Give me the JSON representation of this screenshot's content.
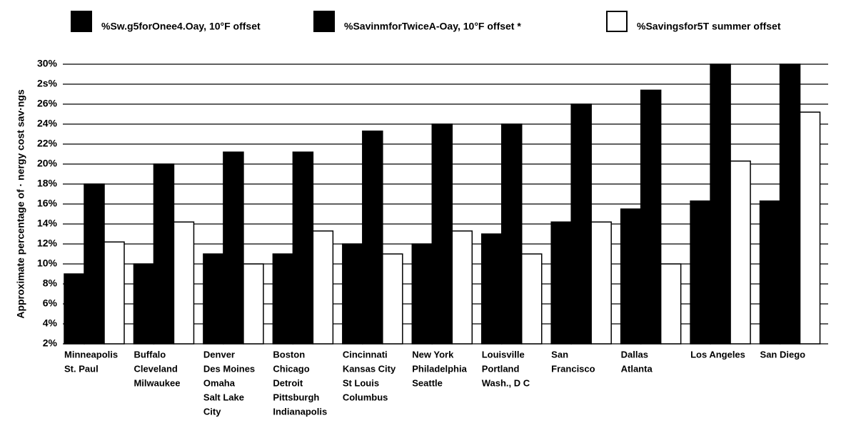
{
  "chart_data": {
    "type": "bar",
    "y_label": "Approximate percentage of · nergy cost sav·ngs",
    "categories": [
      [
        "Minneapolis",
        "St. Paul"
      ],
      [
        "Buffalo",
        "Cleveland",
        "Milwaukee"
      ],
      [
        "Denver",
        "Des Moines",
        "Omaha",
        "Salt Lake",
        "City"
      ],
      [
        "Boston",
        "Chicago",
        "Detroit",
        "Pittsburgh",
        "Indianapolis"
      ],
      [
        "Cincinnati",
        "Kansas City",
        "St Louis",
        "Columbus"
      ],
      [
        "New York",
        "Philadelphia",
        "Seattle"
      ],
      [
        "Louisville",
        "Portland",
        "Wash., D C"
      ],
      [
        "San",
        "Francisco"
      ],
      [
        "Dallas",
        "Atlanta"
      ],
      [
        "Los Angeles"
      ],
      [
        "San Diego"
      ]
    ],
    "series": [
      {
        "name": "%Sw.g5forOnee4.Oay, 10°F offset",
        "color": "#000000",
        "values": [
          9,
          10,
          11,
          11,
          12,
          12,
          13,
          14.2,
          15.5,
          16.3,
          16.3
        ]
      },
      {
        "name": "%SavinmforTwiceA-Oay, 10°F offset *",
        "color": "#000000",
        "values": [
          18,
          20,
          21.2,
          21.2,
          23.3,
          24,
          24,
          26,
          27.4,
          30,
          30
        ]
      },
      {
        "name": "%Savingsfor5T summer offset",
        "color": "#ffffff",
        "values": [
          12.2,
          14.2,
          10,
          13.3,
          11,
          13.3,
          11,
          14.2,
          10,
          20.3,
          25.2
        ]
      }
    ],
    "ylim": [
      2,
      30
    ],
    "yticks": [
      {
        "value": 2,
        "label": "2%"
      },
      {
        "value": 4,
        "label": "4%"
      },
      {
        "value": 6,
        "label": "6%"
      },
      {
        "value": 8,
        "label": "8%"
      },
      {
        "value": 10,
        "label": "10%"
      },
      {
        "value": 12,
        "label": "12%"
      },
      {
        "value": 14,
        "label": "14%"
      },
      {
        "value": 16,
        "label": "16%"
      },
      {
        "value": 18,
        "label": "18%"
      },
      {
        "value": 20,
        "label": "20%"
      },
      {
        "value": 22,
        "label": "22%"
      },
      {
        "value": 24,
        "label": "24%"
      },
      {
        "value": 26,
        "label": "26%"
      },
      {
        "value": 28,
        "label": "2s%"
      },
      {
        "value": 30,
        "label": "30%"
      }
    ],
    "grid": true
  }
}
